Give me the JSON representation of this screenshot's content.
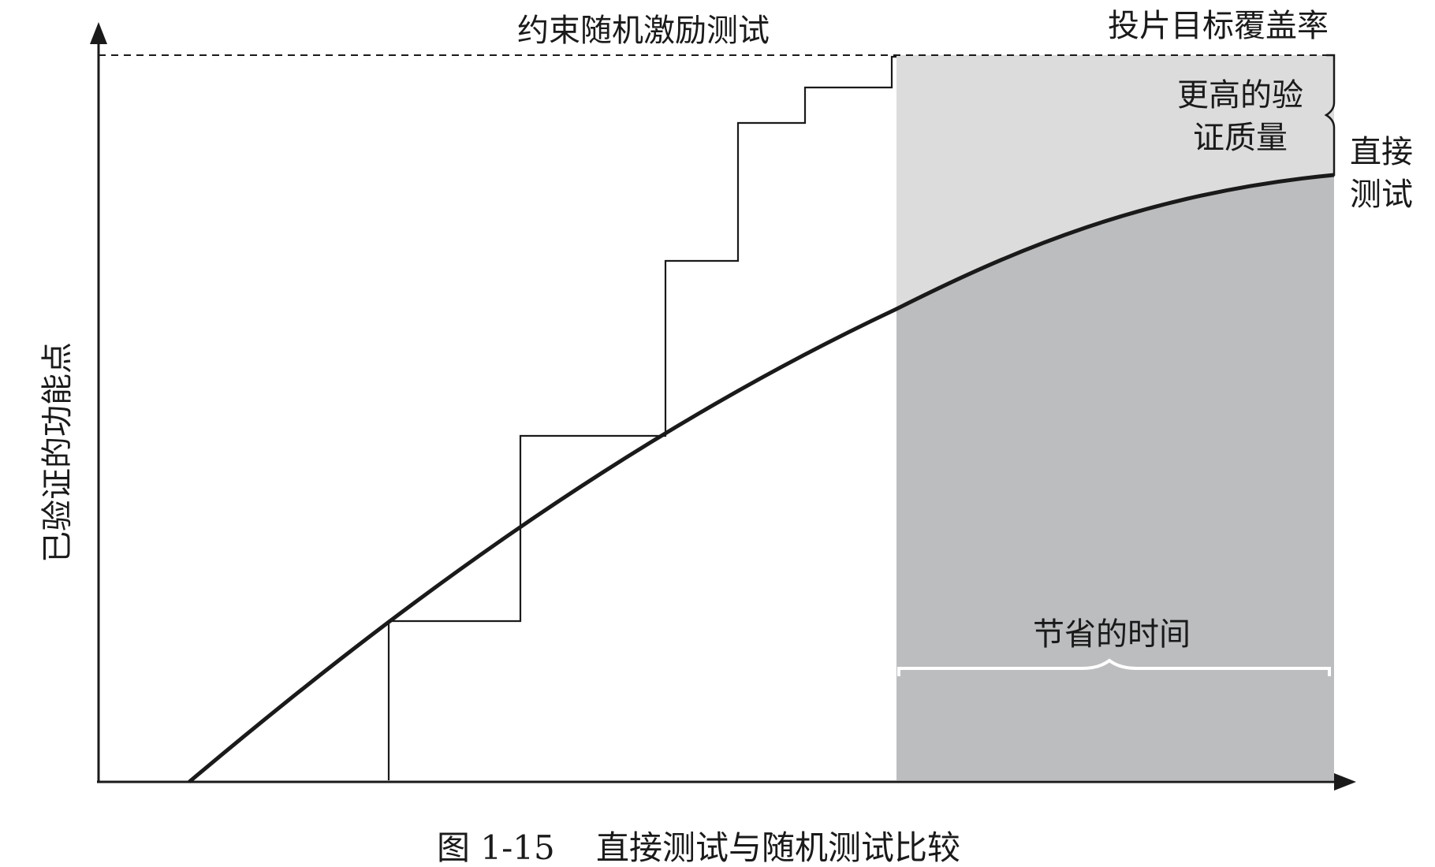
{
  "labels": {
    "random_test": "约束随机激励测试",
    "target_coverage": "投片目标覆盖率",
    "higher_quality_line1": "更高的验",
    "higher_quality_line2": "证质量",
    "direct_test_line1": "直接",
    "direct_test_line2": "测试",
    "time_saved": "节省的时间",
    "y_axis": "已验证的功能点"
  },
  "caption": {
    "number": "图 1-15",
    "title": "直接测试与随机测试比较"
  },
  "colors": {
    "ink": "#1a1a1a",
    "light_region": "#dcdcdd",
    "dark_region": "#bcbdbf",
    "brace_on_dark": "#ffffff"
  }
}
